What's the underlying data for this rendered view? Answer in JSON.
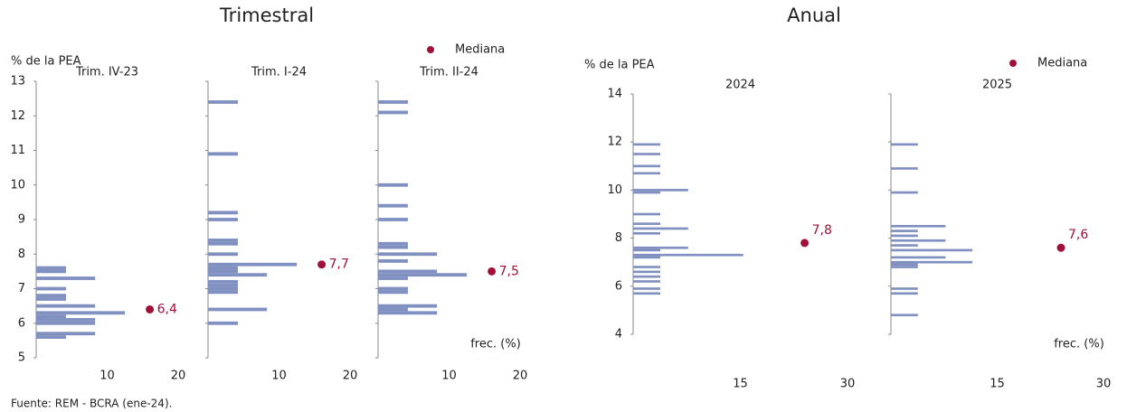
{
  "chart_data": [
    {
      "type": "barh",
      "title": "Trimestral",
      "ylabel": "% de la PEA",
      "legend": "Mediana",
      "xlabel": "frec. (%)",
      "color": "#8090c0",
      "median_color": "#a0103a",
      "panels": [
        {
          "title": "Trim. IV-23",
          "show_ytick_labels": true,
          "y": [
            7.6,
            7.5,
            7.3,
            7.0,
            6.8,
            6.7,
            6.5,
            6.3,
            6.2,
            6.1,
            6.0,
            5.7,
            5.6
          ],
          "values": [
            4.2,
            4.2,
            8.3,
            4.2,
            4.2,
            4.2,
            8.3,
            12.5,
            4.2,
            8.3,
            8.3,
            8.3,
            4.2
          ],
          "median": {
            "y": 6.4,
            "x": 16,
            "label": "6,4"
          },
          "xlim": [
            0,
            20
          ],
          "xticks": [
            10,
            20
          ],
          "ylim": [
            5,
            13
          ],
          "yticks": [
            5,
            6,
            7,
            8,
            9,
            10,
            11,
            12,
            13
          ]
        },
        {
          "title": "Trim. I-24",
          "show_ytick_labels": false,
          "y": [
            12.4,
            10.9,
            9.2,
            9.0,
            8.4,
            8.3,
            8.0,
            7.7,
            7.6,
            7.5,
            7.4,
            7.2,
            7.1,
            7.0,
            6.9,
            6.4,
            6.0
          ],
          "values": [
            4.2,
            4.2,
            4.2,
            4.2,
            4.2,
            4.2,
            4.2,
            12.5,
            4.2,
            4.2,
            8.3,
            4.2,
            4.2,
            4.2,
            4.2,
            8.3,
            4.2
          ],
          "median": {
            "y": 7.7,
            "x": 16,
            "label": "7,7"
          },
          "xlim": [
            0,
            20
          ],
          "xticks": [
            10,
            20
          ],
          "ylim": [
            5,
            13
          ],
          "yticks": [
            5,
            6,
            7,
            8,
            9,
            10,
            11,
            12,
            13
          ]
        },
        {
          "title": "Trim. II-24",
          "show_ytick_labels": false,
          "y": [
            12.4,
            12.1,
            10.0,
            9.4,
            9.0,
            8.3,
            8.2,
            8.0,
            7.8,
            7.5,
            7.4,
            7.3,
            7.0,
            6.9,
            6.5,
            6.4,
            6.3
          ],
          "values": [
            4.2,
            4.2,
            4.2,
            4.2,
            4.2,
            4.2,
            4.2,
            8.3,
            4.2,
            8.3,
            12.5,
            4.2,
            4.2,
            4.2,
            8.3,
            4.2,
            8.3
          ],
          "median": {
            "y": 7.5,
            "x": 16,
            "label": "7,5"
          },
          "xlim": [
            0,
            20
          ],
          "xticks": [
            10,
            20
          ],
          "ylim": [
            5,
            13
          ],
          "yticks": [
            5,
            6,
            7,
            8,
            9,
            10,
            11,
            12,
            13
          ]
        }
      ]
    },
    {
      "type": "barh",
      "title": "Anual",
      "ylabel": "% de la PEA",
      "legend": "Mediana",
      "xlabel": "frec. (%)",
      "color": "#8090c0",
      "median_color": "#a0103a",
      "panels": [
        {
          "title": "2024",
          "show_ytick_labels": true,
          "y": [
            11.9,
            11.5,
            11.0,
            10.7,
            10.0,
            9.9,
            9.0,
            8.6,
            8.4,
            8.2,
            7.6,
            7.5,
            7.3,
            7.2,
            6.8,
            6.6,
            6.4,
            6.2,
            5.9,
            5.7
          ],
          "values": [
            3.8,
            3.8,
            3.8,
            3.8,
            7.7,
            3.8,
            3.8,
            3.8,
            7.7,
            3.8,
            7.7,
            3.8,
            15.4,
            3.8,
            3.8,
            3.8,
            3.8,
            3.8,
            3.8,
            3.8
          ],
          "median": {
            "y": 7.8,
            "x": 24,
            "label": "7,8"
          },
          "xlim": [
            0,
            30
          ],
          "xticks": [
            15,
            30
          ],
          "ylim": [
            4,
            14
          ],
          "yticks": [
            4,
            6,
            8,
            10,
            12,
            14
          ]
        },
        {
          "title": "2025",
          "show_ytick_labels": false,
          "y": [
            11.9,
            10.9,
            9.9,
            8.5,
            8.3,
            8.1,
            7.9,
            7.7,
            7.5,
            7.2,
            7.0,
            6.9,
            6.8,
            5.9,
            5.7,
            4.8
          ],
          "values": [
            3.8,
            3.8,
            3.8,
            7.7,
            3.8,
            3.8,
            7.7,
            3.8,
            11.5,
            7.7,
            11.5,
            3.8,
            3.8,
            3.8,
            3.8,
            3.8
          ],
          "median": {
            "y": 7.6,
            "x": 24,
            "label": "7,6"
          },
          "xlim": [
            0,
            30
          ],
          "xticks": [
            15,
            30
          ],
          "ylim": [
            4,
            14
          ],
          "yticks": [
            4,
            6,
            8,
            10,
            12,
            14
          ]
        }
      ]
    }
  ],
  "source": "Fuente: REM - BCRA (ene-24)."
}
